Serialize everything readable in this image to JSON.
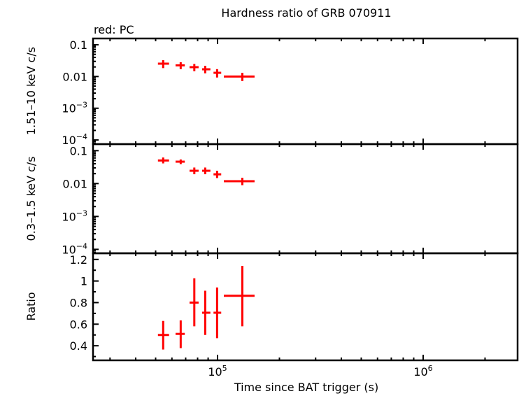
{
  "chart_data": {
    "type": "scatter",
    "title": "Hardness ratio of GRB 070911",
    "annotation": "red: PC",
    "xlabel": "Time since BAT trigger (s)",
    "x_scale": "log",
    "xlim": [
      24800,
      2880000
    ],
    "x_ticks": [
      {
        "base": "10",
        "exp": "5",
        "value": 100000
      },
      {
        "base": "10",
        "exp": "6",
        "value": 1000000
      }
    ],
    "series_color": "#ff0000",
    "panels": [
      {
        "ylabel": "1.51–10 keV c/s",
        "y_scale": "log",
        "ylim": [
          7.4e-05,
          0.158
        ],
        "y_ticks": [
          {
            "base": "0.1",
            "exp": "",
            "value": 0.1
          },
          {
            "base": "0.01",
            "exp": "",
            "value": 0.01
          },
          {
            "base": "10",
            "exp": "−3",
            "value": 0.001
          },
          {
            "base": "10",
            "exp": "−4",
            "value": 0.0001
          }
        ],
        "points": [
          {
            "x": 54400,
            "xlo": 51300,
            "xhi": 58100,
            "y": 0.0254,
            "ylo": 0.0184,
            "yhi": 0.0327
          },
          {
            "x": 66200,
            "xlo": 62500,
            "xhi": 69300,
            "y": 0.0225,
            "ylo": 0.0171,
            "yhi": 0.0282
          },
          {
            "x": 77100,
            "xlo": 73100,
            "xhi": 80900,
            "y": 0.0197,
            "ylo": 0.0147,
            "yhi": 0.0249
          },
          {
            "x": 87100,
            "xlo": 84100,
            "xhi": 92300,
            "y": 0.0169,
            "ylo": 0.0126,
            "yhi": 0.0218
          },
          {
            "x": 99500,
            "xlo": 95600,
            "xhi": 104200,
            "y": 0.0131,
            "ylo": 0.0093,
            "yhi": 0.0171
          },
          {
            "x": 132000,
            "xlo": 107300,
            "xhi": 151400,
            "y": 0.01,
            "ylo": 0.0072,
            "yhi": 0.0131
          }
        ]
      },
      {
        "ylabel": "0.3–1.5 keV c/s",
        "y_scale": "log",
        "ylim": [
          7.6e-05,
          0.158
        ],
        "y_ticks": [
          {
            "base": "0.1",
            "exp": "",
            "value": 0.1
          },
          {
            "base": "0.01",
            "exp": "",
            "value": 0.01
          },
          {
            "base": "10",
            "exp": "−3",
            "value": 0.001
          },
          {
            "base": "10",
            "exp": "−4",
            "value": 0.0001
          }
        ],
        "points": [
          {
            "x": 54400,
            "xlo": 51300,
            "xhi": 58100,
            "y": 0.0503,
            "ylo": 0.041,
            "yhi": 0.062
          },
          {
            "x": 66200,
            "xlo": 62500,
            "xhi": 69300,
            "y": 0.0463,
            "ylo": 0.039,
            "yhi": 0.054
          },
          {
            "x": 77100,
            "xlo": 73100,
            "xhi": 80900,
            "y": 0.0245,
            "ylo": 0.0192,
            "yhi": 0.0307
          },
          {
            "x": 87100,
            "xlo": 84100,
            "xhi": 92300,
            "y": 0.0245,
            "ylo": 0.0192,
            "yhi": 0.0307
          },
          {
            "x": 99500,
            "xlo": 95600,
            "xhi": 104200,
            "y": 0.0191,
            "ylo": 0.0147,
            "yhi": 0.0245
          },
          {
            "x": 132000,
            "xlo": 107300,
            "xhi": 151400,
            "y": 0.0118,
            "ylo": 0.0089,
            "yhi": 0.015
          }
        ]
      },
      {
        "ylabel": "Ratio",
        "y_scale": "linear",
        "ylim": [
          0.265,
          1.257
        ],
        "y_ticks": [
          {
            "base": "1.2",
            "exp": "",
            "value": 1.2
          },
          {
            "base": "1",
            "exp": "",
            "value": 1.0
          },
          {
            "base": "0.8",
            "exp": "",
            "value": 0.8
          },
          {
            "base": "0.6",
            "exp": "",
            "value": 0.6
          },
          {
            "base": "0.4",
            "exp": "",
            "value": 0.4
          }
        ],
        "points": [
          {
            "x": 54400,
            "xlo": 51300,
            "xhi": 58100,
            "y": 0.5,
            "ylo": 0.365,
            "yhi": 0.63
          },
          {
            "x": 66200,
            "xlo": 62500,
            "xhi": 69300,
            "y": 0.51,
            "ylo": 0.378,
            "yhi": 0.635
          },
          {
            "x": 77100,
            "xlo": 73100,
            "xhi": 80900,
            "y": 0.8,
            "ylo": 0.58,
            "yhi": 1.025
          },
          {
            "x": 87100,
            "xlo": 84100,
            "xhi": 92300,
            "y": 0.706,
            "ylo": 0.5,
            "yhi": 0.91
          },
          {
            "x": 99500,
            "xlo": 95600,
            "xhi": 104200,
            "y": 0.706,
            "ylo": 0.47,
            "yhi": 0.94
          },
          {
            "x": 132000,
            "xlo": 107300,
            "xhi": 151400,
            "y": 0.863,
            "ylo": 0.58,
            "yhi": 1.14
          }
        ]
      }
    ]
  }
}
